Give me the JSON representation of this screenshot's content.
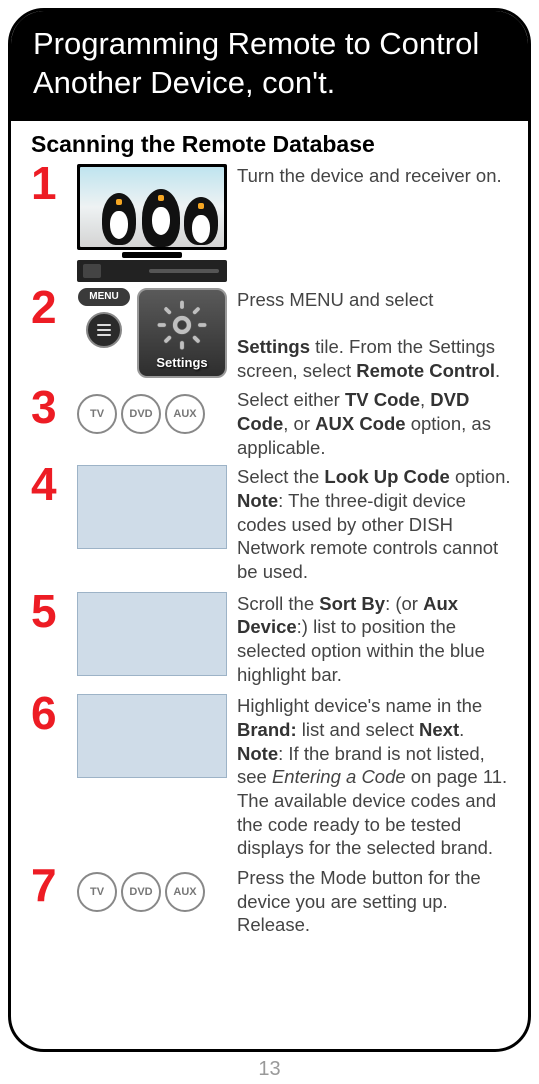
{
  "page_number": "13",
  "header_title": "Programming Remote to Control Another Device, con't.",
  "subheading": "Scanning the Remote Database",
  "colors": {
    "step_number": "#ed1c24",
    "header_bg": "#000000",
    "header_text": "#ffffff",
    "body_text": "#444444",
    "placeholder_box_bg": "#cfdce8",
    "placeholder_box_border": "#9db3c7"
  },
  "mode_buttons": [
    "TV",
    "DVD",
    "AUX"
  ],
  "menu_pill_label": "MENU",
  "settings_tile_label": "Settings",
  "steps": [
    {
      "n": "1",
      "text_html": "Turn the device and receiver on."
    },
    {
      "n": "2",
      "text_html": "Press MENU and select<br><br><b>Settings</b> tile. From the Settings screen, select <b>Remote Control</b>."
    },
    {
      "n": "3",
      "text_html": "Select either <b>TV Code</b>, <b>DVD Code</b>, or <b>AUX Code</b> option, as applicable."
    },
    {
      "n": "4",
      "text_html": "Select the <b>Look Up Code</b> option. <b>Note</b>: The three-digit device codes used by other DISH Network remote controls cannot be used."
    },
    {
      "n": "5",
      "text_html": "Scroll the <b>Sort By</b>: (or <b>Aux Device</b>:) list to position the selected option within the blue highlight bar."
    },
    {
      "n": "6",
      "text_html": "Highlight device's name in the <b>Brand:</b> list and select <b>Next</b>. <b>Note</b>: If the brand is not listed, see <i>Entering a Code</i> on page 11. The available device codes and the code ready to be tested displays for the selected brand."
    },
    {
      "n": "7",
      "text_html": "Press the Mode button for the device you are setting up. Release."
    }
  ]
}
